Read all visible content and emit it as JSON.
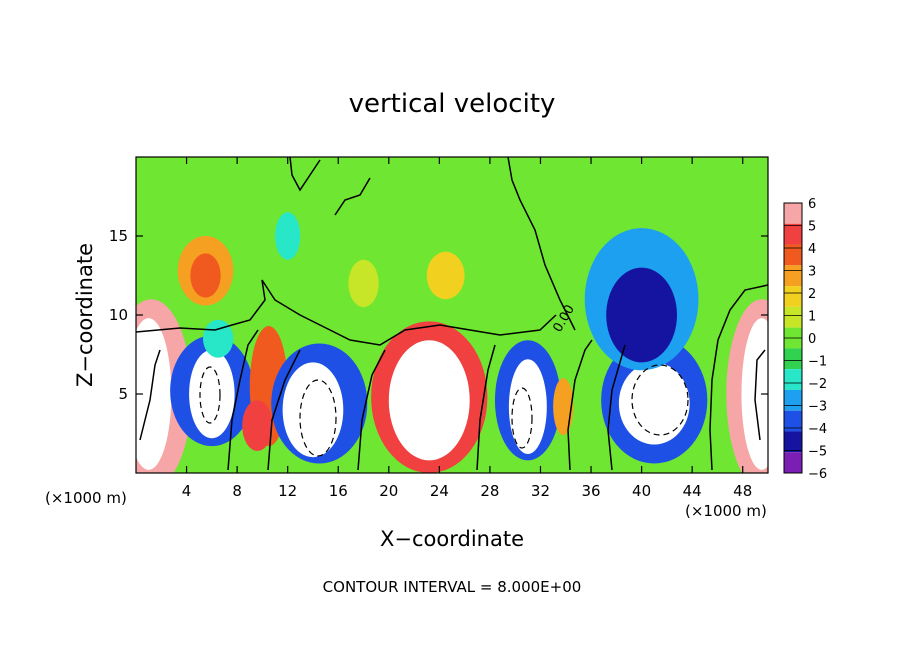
{
  "chart_data": {
    "type": "heatmap",
    "title": "vertical velocity",
    "xlabel": "X−coordinate",
    "ylabel": "Z−coordinate",
    "x_unit": "(×1000 m)",
    "y_unit": "(×1000 m)",
    "xlim": [
      0,
      50
    ],
    "ylim": [
      0,
      20
    ],
    "x_ticks": [
      4,
      8,
      12,
      16,
      20,
      24,
      28,
      32,
      36,
      40,
      44,
      48
    ],
    "y_ticks": [
      5,
      10,
      15
    ],
    "colorbar": {
      "ticks": [
        "6",
        "5",
        "4",
        "3",
        "2",
        "1",
        "0",
        "−1",
        "−2",
        "−3",
        "−4",
        "−5",
        "−6"
      ],
      "colors": [
        "#f6a6a6",
        "#f04040",
        "#f05a1e",
        "#f5a020",
        "#f2d020",
        "#c8e628",
        "#6ee632",
        "#30d250",
        "#28e6c8",
        "#1ea0f0",
        "#1e50e6",
        "#1414a0",
        "#7a1eb4"
      ]
    },
    "contour_interval_label": "CONTOUR INTERVAL = 8.000E+00",
    "contour_label": "0.00",
    "features": [
      {
        "x": 1,
        "z": 5,
        "value": 7
      },
      {
        "x": 5.5,
        "z": 12.5,
        "value": 3
      },
      {
        "x": 6,
        "z": 5,
        "value": -7
      },
      {
        "x": 10.5,
        "z": 6,
        "value": 4
      },
      {
        "x": 14,
        "z": 4,
        "value": -7
      },
      {
        "x": 23,
        "z": 4.5,
        "value": 7
      },
      {
        "x": 31,
        "z": 4,
        "value": -7
      },
      {
        "x": 41,
        "z": 4.5,
        "value": -7
      },
      {
        "x": 40,
        "z": 11,
        "value": -5
      },
      {
        "x": 49,
        "z": 5,
        "value": 7
      }
    ]
  }
}
